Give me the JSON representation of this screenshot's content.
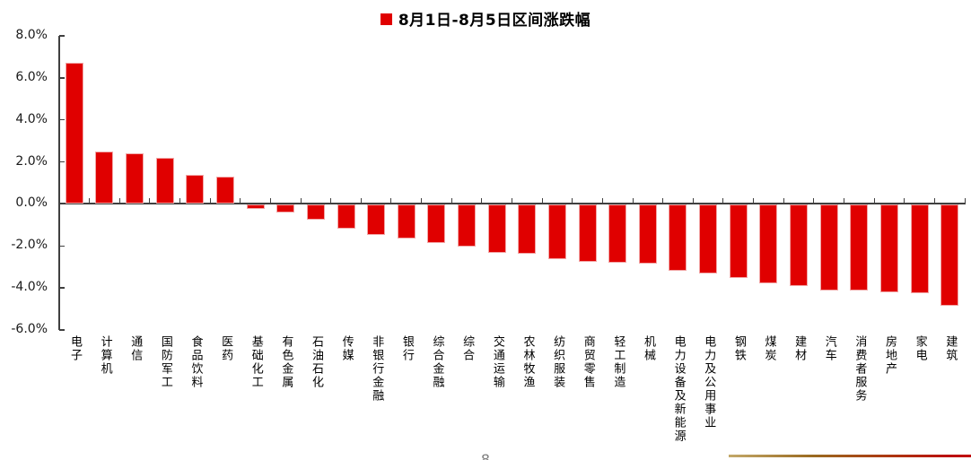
{
  "chart_data": {
    "type": "bar",
    "title": "8月1日-8月5日区间涨跌幅",
    "legend_label": "8月1日-8月5日区间涨跌幅",
    "legend_position": "top-center",
    "bar_color": "#e00000",
    "bar_edge_color": "#f2a6a6",
    "axis_color": "#3f3f3f",
    "background": "#ffffff",
    "grid": false,
    "categories": [
      "电子",
      "计算机",
      "通信",
      "国防军工",
      "食品饮料",
      "医药",
      "基础化工",
      "有色金属",
      "石油石化",
      "传媒",
      "非银行金融",
      "银行",
      "综合金融",
      "综合",
      "交通运输",
      "农林牧渔",
      "纺织服装",
      "商贸零售",
      "轻工制造",
      "机械",
      "电力设备及新能源",
      "电力及公用事业",
      "钢铁",
      "煤炭",
      "建材",
      "汽车",
      "消费者服务",
      "房地产",
      "家电",
      "建筑"
    ],
    "values": [
      6.7,
      2.5,
      2.4,
      2.2,
      1.4,
      1.3,
      -0.2,
      -0.35,
      -0.7,
      -1.15,
      -1.45,
      -1.6,
      -1.8,
      -2.0,
      -2.3,
      -2.35,
      -2.6,
      -2.7,
      -2.75,
      -2.8,
      -3.15,
      -3.25,
      -3.5,
      -3.75,
      -3.85,
      -4.1,
      -4.1,
      -4.15,
      -4.2,
      -4.8
    ],
    "ylim": [
      -6,
      8
    ],
    "yticks": [
      8,
      6,
      4,
      2,
      0,
      -2,
      -4,
      -6
    ],
    "ytick_labels": [
      "8.0%",
      "6.0%",
      "4.0%",
      "2.0%",
      "0.0%",
      "-2.0%",
      "-4.0%",
      "-6.0%"
    ],
    "xlabel": "",
    "ylabel": ""
  },
  "footer": {
    "page_number": "8",
    "accent_line_colors": [
      "#c3a96a",
      "#9a6a20",
      "#c00000"
    ]
  }
}
